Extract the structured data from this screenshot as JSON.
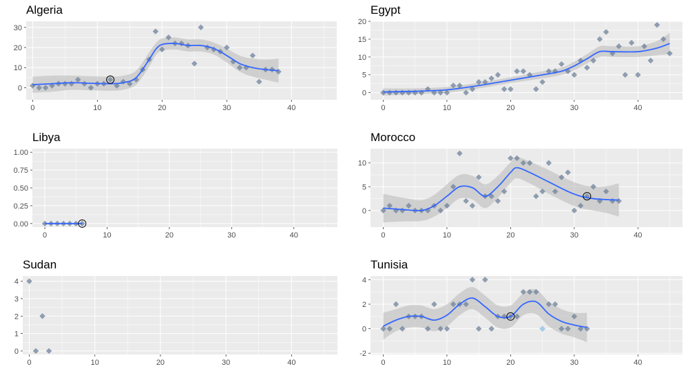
{
  "chart_data": [
    {
      "type": "scatter",
      "title": "Algeria",
      "xlim": [
        -1,
        47
      ],
      "ylim": [
        -6,
        33
      ],
      "xticks": [
        0,
        10,
        20,
        30,
        40
      ],
      "yticks": [
        0,
        10,
        20,
        30
      ],
      "points": [
        [
          0,
          1
        ],
        [
          1,
          0
        ],
        [
          2,
          0
        ],
        [
          3,
          1
        ],
        [
          4,
          2
        ],
        [
          5,
          2
        ],
        [
          6,
          2
        ],
        [
          7,
          4
        ],
        [
          8,
          2
        ],
        [
          9,
          0
        ],
        [
          10,
          2
        ],
        [
          11,
          2
        ],
        [
          12,
          4
        ],
        [
          13,
          1
        ],
        [
          14,
          3
        ],
        [
          15,
          2
        ],
        [
          16,
          4
        ],
        [
          17,
          9
        ],
        [
          18,
          14
        ],
        [
          19,
          28
        ],
        [
          20,
          19
        ],
        [
          21,
          25
        ],
        [
          22,
          22
        ],
        [
          23,
          22
        ],
        [
          24,
          21
        ],
        [
          25,
          12
        ],
        [
          26,
          30
        ],
        [
          27,
          20
        ],
        [
          28,
          19
        ],
        [
          29,
          18
        ],
        [
          30,
          20
        ],
        [
          31,
          13
        ],
        [
          32,
          10
        ],
        [
          33,
          10
        ],
        [
          34,
          16
        ],
        [
          35,
          3
        ],
        [
          36,
          9
        ],
        [
          37,
          9
        ],
        [
          38,
          8
        ]
      ],
      "smooth": [
        [
          0,
          1.5
        ],
        [
          3,
          2
        ],
        [
          6,
          2.5
        ],
        [
          9,
          2.2
        ],
        [
          12,
          2
        ],
        [
          14,
          2.5
        ],
        [
          16,
          5
        ],
        [
          18,
          14
        ],
        [
          19,
          19
        ],
        [
          20,
          21.5
        ],
        [
          22,
          22
        ],
        [
          24,
          21
        ],
        [
          26,
          21
        ],
        [
          28,
          19.5
        ],
        [
          30,
          16
        ],
        [
          32,
          12
        ],
        [
          34,
          10
        ],
        [
          36,
          9
        ],
        [
          38,
          8.5
        ]
      ],
      "band": [
        4,
        4,
        3.5,
        3.5,
        3.5,
        3.5,
        3.5,
        3.5,
        3,
        3,
        3,
        3,
        3,
        3,
        3.5,
        4,
        4.5,
        5,
        6
      ],
      "highlight": [
        12,
        4
      ]
    },
    {
      "type": "scatter",
      "title": "Egypt",
      "xlim": [
        -2,
        47
      ],
      "ylim": [
        -2,
        20
      ],
      "xticks": [
        0,
        10,
        20,
        30,
        40
      ],
      "yticks": [
        0,
        5,
        10,
        15,
        20
      ],
      "points": [
        [
          0,
          0
        ],
        [
          1,
          0
        ],
        [
          2,
          0
        ],
        [
          3,
          0
        ],
        [
          4,
          0
        ],
        [
          5,
          0
        ],
        [
          6,
          0
        ],
        [
          7,
          1
        ],
        [
          8,
          0
        ],
        [
          9,
          0
        ],
        [
          10,
          0
        ],
        [
          11,
          2
        ],
        [
          12,
          2
        ],
        [
          13,
          0
        ],
        [
          14,
          1
        ],
        [
          15,
          3
        ],
        [
          16,
          3
        ],
        [
          17,
          4
        ],
        [
          18,
          5
        ],
        [
          19,
          1
        ],
        [
          20,
          1
        ],
        [
          21,
          6
        ],
        [
          22,
          6
        ],
        [
          23,
          5
        ],
        [
          24,
          1
        ],
        [
          25,
          3
        ],
        [
          26,
          6
        ],
        [
          27,
          6
        ],
        [
          28,
          8
        ],
        [
          29,
          6
        ],
        [
          30,
          5
        ],
        [
          31,
          9
        ],
        [
          32,
          7
        ],
        [
          33,
          9
        ],
        [
          34,
          15
        ],
        [
          35,
          17
        ],
        [
          36,
          11
        ],
        [
          37,
          13
        ],
        [
          38,
          5
        ],
        [
          39,
          14
        ],
        [
          40,
          5
        ],
        [
          41,
          13
        ],
        [
          42,
          9
        ],
        [
          43,
          19
        ],
        [
          44,
          15
        ],
        [
          45,
          11
        ]
      ],
      "smooth": [
        [
          0,
          0.2
        ],
        [
          5,
          0.4
        ],
        [
          10,
          0.8
        ],
        [
          15,
          2
        ],
        [
          20,
          3.5
        ],
        [
          25,
          5
        ],
        [
          28,
          6
        ],
        [
          30,
          7.5
        ],
        [
          32,
          9.5
        ],
        [
          34,
          11.5
        ],
        [
          36,
          11.5
        ],
        [
          40,
          11.5
        ],
        [
          43,
          12.5
        ],
        [
          45,
          13.8
        ]
      ],
      "band": [
        1,
        0.8,
        0.8,
        0.8,
        0.8,
        1,
        1,
        1.2,
        1.3,
        1.5,
        1.5,
        1.5,
        2,
        3
      ],
      "highlight": null
    },
    {
      "type": "scatter",
      "title": "Libya",
      "xlim": [
        -2,
        47
      ],
      "ylim": [
        -0.05,
        1.05
      ],
      "xticks": [
        0,
        10,
        20,
        30,
        40
      ],
      "yticks": [
        0.0,
        0.25,
        0.5,
        0.75,
        1.0
      ],
      "ytick_labels": [
        "0.00",
        "0.25",
        "0.50",
        "0.75",
        "1.00"
      ],
      "points": [
        [
          0,
          0
        ],
        [
          1,
          0
        ],
        [
          2,
          0
        ],
        [
          3,
          0
        ],
        [
          4,
          0
        ],
        [
          5,
          0
        ],
        [
          6,
          0
        ]
      ],
      "smooth": [
        [
          0,
          0
        ],
        [
          6,
          0
        ]
      ],
      "band": [
        0,
        0
      ],
      "highlight": [
        6,
        0
      ]
    },
    {
      "type": "scatter",
      "title": "Morocco",
      "xlim": [
        -2,
        47
      ],
      "ylim": [
        -3.5,
        13
      ],
      "xticks": [
        0,
        10,
        20,
        30,
        40
      ],
      "yticks": [
        0,
        5,
        10
      ],
      "points": [
        [
          0,
          0
        ],
        [
          1,
          1
        ],
        [
          2,
          0
        ],
        [
          3,
          0
        ],
        [
          4,
          1
        ],
        [
          5,
          0
        ],
        [
          6,
          0
        ],
        [
          7,
          0
        ],
        [
          8,
          1
        ],
        [
          9,
          0
        ],
        [
          10,
          1
        ],
        [
          11,
          5
        ],
        [
          12,
          12
        ],
        [
          13,
          2
        ],
        [
          14,
          1
        ],
        [
          15,
          7
        ],
        [
          16,
          3
        ],
        [
          17,
          3
        ],
        [
          18,
          2
        ],
        [
          19,
          4
        ],
        [
          20,
          11
        ],
        [
          21,
          11
        ],
        [
          22,
          10
        ],
        [
          23,
          10
        ],
        [
          24,
          3
        ],
        [
          25,
          4
        ],
        [
          26,
          10
        ],
        [
          27,
          4
        ],
        [
          28,
          7
        ],
        [
          29,
          8
        ],
        [
          30,
          0
        ],
        [
          31,
          1
        ],
        [
          32,
          3
        ],
        [
          33,
          5
        ],
        [
          34,
          2
        ],
        [
          35,
          4
        ],
        [
          36,
          2
        ],
        [
          37,
          2
        ]
      ],
      "smooth": [
        [
          0,
          0.5
        ],
        [
          3,
          0.2
        ],
        [
          6,
          0
        ],
        [
          8,
          1
        ],
        [
          10,
          3
        ],
        [
          12,
          5
        ],
        [
          14,
          4.8
        ],
        [
          16,
          3
        ],
        [
          18,
          5
        ],
        [
          20,
          8
        ],
        [
          21,
          9
        ],
        [
          23,
          8
        ],
        [
          26,
          6
        ],
        [
          29,
          4
        ],
        [
          31,
          3
        ],
        [
          33,
          2.5
        ],
        [
          35,
          2.3
        ],
        [
          37,
          2.2
        ]
      ],
      "band": [
        3,
        2.5,
        2.2,
        2.3,
        2.5,
        2.5,
        2.5,
        2.5,
        2.3,
        2.2,
        2.2,
        2.3,
        2.5,
        2.5,
        2.5,
        2.5,
        2.8,
        3.5
      ],
      "highlight": [
        32,
        3
      ]
    },
    {
      "type": "scatter",
      "title": "Sudan",
      "xlim": [
        -1,
        47
      ],
      "ylim": [
        -0.2,
        4.3
      ],
      "xticks": [
        0,
        10,
        20,
        30,
        40
      ],
      "yticks": [
        0,
        1,
        2,
        3,
        4
      ],
      "points": [
        [
          0,
          4
        ],
        [
          1,
          0
        ],
        [
          2,
          2
        ],
        [
          3,
          0
        ]
      ],
      "smooth": [],
      "band": [],
      "highlight": null
    },
    {
      "type": "scatter",
      "title": "Tunisia",
      "xlim": [
        -2,
        47
      ],
      "ylim": [
        -2.1,
        4.3
      ],
      "xticks": [
        0,
        10,
        20,
        30,
        40
      ],
      "yticks": [
        -2,
        0,
        2,
        4
      ],
      "points": [
        [
          0,
          0
        ],
        [
          1,
          0
        ],
        [
          2,
          2
        ],
        [
          3,
          0
        ],
        [
          4,
          1
        ],
        [
          5,
          1
        ],
        [
          6,
          1
        ],
        [
          7,
          0
        ],
        [
          8,
          2
        ],
        [
          9,
          0
        ],
        [
          10,
          0
        ],
        [
          11,
          2
        ],
        [
          12,
          2
        ],
        [
          13,
          2
        ],
        [
          14,
          4
        ],
        [
          15,
          0
        ],
        [
          16,
          4
        ],
        [
          17,
          0
        ],
        [
          18,
          1
        ],
        [
          19,
          1
        ],
        [
          20,
          1
        ],
        [
          21,
          1
        ],
        [
          22,
          3
        ],
        [
          23,
          3
        ],
        [
          24,
          3
        ],
        [
          25,
          0
        ],
        [
          26,
          2
        ],
        [
          27,
          2
        ],
        [
          28,
          0
        ],
        [
          29,
          0
        ],
        [
          30,
          1
        ],
        [
          31,
          0
        ],
        [
          32,
          0
        ]
      ],
      "smooth": [
        [
          0,
          0.2
        ],
        [
          2,
          0.7
        ],
        [
          4,
          1
        ],
        [
          6,
          1
        ],
        [
          8,
          0.7
        ],
        [
          10,
          1.1
        ],
        [
          12,
          2
        ],
        [
          14,
          2.5
        ],
        [
          16,
          1.8
        ],
        [
          18,
          1
        ],
        [
          20,
          1
        ],
        [
          22,
          2
        ],
        [
          24,
          2.2
        ],
        [
          26,
          1.2
        ],
        [
          28,
          0.6
        ],
        [
          30,
          0.3
        ],
        [
          32,
          0.1
        ]
      ],
      "band": [
        1.1,
        0.9,
        0.9,
        0.9,
        0.9,
        0.9,
        0.9,
        0.9,
        0.9,
        0.9,
        0.9,
        0.9,
        1,
        1,
        1,
        1,
        1.2
      ],
      "highlight": [
        20,
        1
      ],
      "light_points": [
        [
          25,
          0
        ]
      ]
    }
  ],
  "colors": {
    "panel_bg": "#ebebeb",
    "grid": "#ffffff",
    "point": "#6e829a",
    "point_light": "#a8cde6",
    "smooth": "#3366ff",
    "band": "#bdbdbd",
    "axis_text": "#4d4d4d"
  }
}
